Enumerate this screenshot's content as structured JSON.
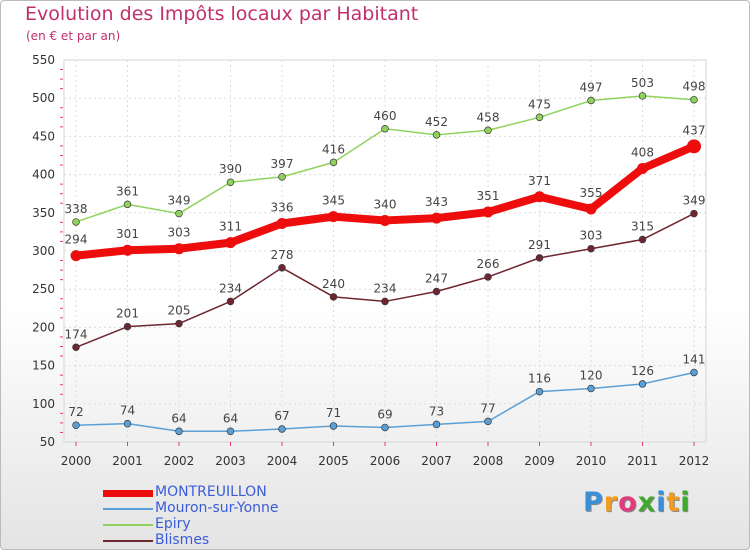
{
  "title": "Evolution des Impôts locaux par Habitant",
  "subtitle": "(en € et par an)",
  "logo": {
    "letters": [
      "P",
      "r",
      "o",
      "x",
      "i",
      "t",
      "i"
    ],
    "colors": [
      "#3b8fd6",
      "#f39c1f",
      "#e03b7a",
      "#3fa82d",
      "#3b8fd6",
      "#f39c1f",
      "#3fa82d"
    ]
  },
  "chart_data": {
    "type": "line",
    "x": [
      "2000",
      "2001",
      "2002",
      "2003",
      "2004",
      "2005",
      "2006",
      "2007",
      "2008",
      "2009",
      "2010",
      "2011",
      "2012"
    ],
    "ylim": [
      50,
      550
    ],
    "yticks": [
      50,
      100,
      150,
      200,
      250,
      300,
      350,
      400,
      450,
      500,
      550
    ],
    "grid": true,
    "legend_position": "bottom-left",
    "series": [
      {
        "name": "Epiry",
        "color": "#8fd35c",
        "values": [
          338,
          361,
          349,
          390,
          397,
          416,
          460,
          452,
          458,
          475,
          497,
          503,
          498
        ]
      },
      {
        "name": "Blismes",
        "color": "#6e2630",
        "values": [
          174,
          201,
          205,
          234,
          278,
          240,
          234,
          247,
          266,
          291,
          303,
          315,
          349
        ]
      },
      {
        "name": "Mouron-sur-Yonne",
        "color": "#5aa0d6",
        "values": [
          72,
          74,
          64,
          64,
          67,
          71,
          69,
          73,
          77,
          116,
          120,
          126,
          141
        ]
      },
      {
        "name": "MONTREUILLON",
        "color": "#ee0d0d",
        "values": [
          294,
          301,
          303,
          311,
          336,
          345,
          340,
          343,
          351,
          371,
          355,
          408,
          437
        ]
      }
    ],
    "legend_order": [
      "MONTREUILLON",
      "Mouron-sur-Yonne",
      "Epiry",
      "Blismes"
    ]
  }
}
